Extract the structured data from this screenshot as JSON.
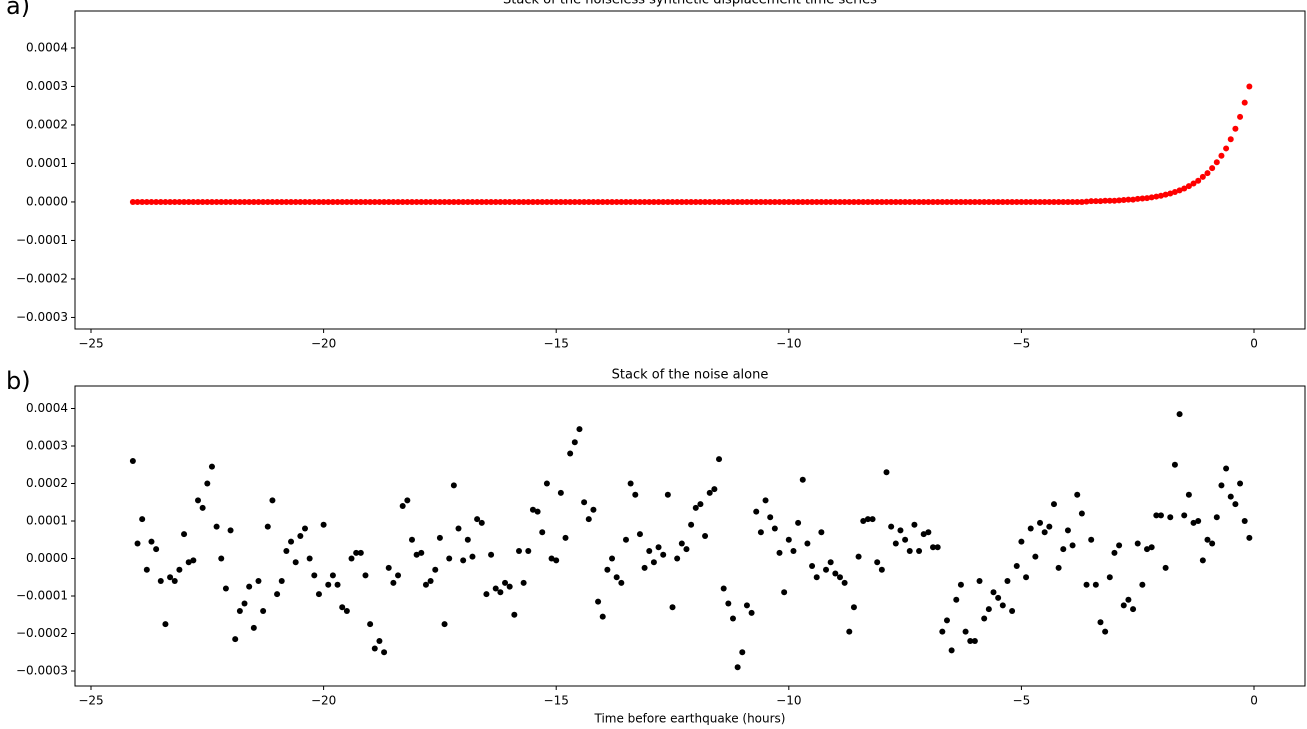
{
  "chart_data": [
    {
      "type": "scatter",
      "panel_label": "a)",
      "title": "Stack of the noiseless synthetic displacement time series",
      "color": "#ff0000",
      "x": [
        -24.1,
        -24,
        -23.9,
        -23.8,
        -23.7,
        -23.6,
        -23.5,
        -23.4,
        -23.3,
        -23.2,
        -23.1,
        -23,
        -22.9,
        -22.8,
        -22.7,
        -22.6,
        -22.5,
        -22.4,
        -22.3,
        -22.2,
        -22.1,
        -22,
        -21.9,
        -21.8,
        -21.7,
        -21.6,
        -21.5,
        -21.4,
        -21.3,
        -21.2,
        -21.1,
        -21,
        -20.9,
        -20.8,
        -20.7,
        -20.6,
        -20.5,
        -20.4,
        -20.3,
        -20.2,
        -20.1,
        -20,
        -19.9,
        -19.8,
        -19.7,
        -19.6,
        -19.5,
        -19.4,
        -19.3,
        -19.2,
        -19.1,
        -19,
        -18.9,
        -18.8,
        -18.7,
        -18.6,
        -18.5,
        -18.4,
        -18.3,
        -18.2,
        -18.1,
        -18,
        -17.9,
        -17.8,
        -17.7,
        -17.6,
        -17.5,
        -17.4,
        -17.3,
        -17.2,
        -17.1,
        -17,
        -16.9,
        -16.8,
        -16.7,
        -16.6,
        -16.5,
        -16.4,
        -16.3,
        -16.2,
        -16.1,
        -16,
        -15.9,
        -15.8,
        -15.7,
        -15.6,
        -15.5,
        -15.4,
        -15.3,
        -15.2,
        -15.1,
        -15,
        -14.9,
        -14.8,
        -14.7,
        -14.6,
        -14.5,
        -14.4,
        -14.3,
        -14.2,
        -14.1,
        -14,
        -13.9,
        -13.8,
        -13.7,
        -13.6,
        -13.5,
        -13.4,
        -13.3,
        -13.2,
        -13.1,
        -13,
        -12.9,
        -12.8,
        -12.7,
        -12.6,
        -12.5,
        -12.4,
        -12.3,
        -12.2,
        -12.1,
        -12,
        -11.9,
        -11.8,
        -11.7,
        -11.6,
        -11.5,
        -11.4,
        -11.3,
        -11.2,
        -11.1,
        -11,
        -10.9,
        -10.8,
        -10.7,
        -10.6,
        -10.5,
        -10.4,
        -10.3,
        -10.2,
        -10.1,
        -10,
        -9.9,
        -9.8,
        -9.7,
        -9.6,
        -9.5,
        -9.4,
        -9.3,
        -9.2,
        -9.1,
        -9,
        -8.9,
        -8.8,
        -8.7,
        -8.6,
        -8.5,
        -8.4,
        -8.3,
        -8.2,
        -8.1,
        -8,
        -7.9,
        -7.8,
        -7.7,
        -7.6,
        -7.5,
        -7.4,
        -7.3,
        -7.2,
        -7.1,
        -7,
        -6.9,
        -6.8,
        -6.7,
        -6.6,
        -6.5,
        -6.4,
        -6.3,
        -6.2,
        -6.1,
        -6,
        -5.9,
        -5.8,
        -5.7,
        -5.6,
        -5.5,
        -5.4,
        -5.3,
        -5.2,
        -5.1,
        -5,
        -4.9,
        -4.8,
        -4.7,
        -4.6,
        -4.5,
        -4.4,
        -4.3,
        -4.2,
        -4.1,
        -4,
        -3.9,
        -3.8,
        -3.7,
        -3.6,
        -3.5,
        -3.4,
        -3.3,
        -3.2,
        -3.1,
        -3,
        -2.9,
        -2.8,
        -2.7,
        -2.6,
        -2.5,
        -2.4,
        -2.3,
        -2.2,
        -2.1,
        -2,
        -1.9,
        -1.8,
        -1.7,
        -1.6,
        -1.5,
        -1.4,
        -1.3,
        -1.2,
        -1.1,
        -1,
        -0.9,
        -0.8,
        -0.7,
        -0.6,
        -0.5,
        -0.4,
        -0.3,
        -0.2,
        -0.1
      ],
      "values": [
        0,
        0,
        0,
        0,
        0,
        0,
        0,
        0,
        0,
        0,
        0,
        0,
        0,
        0,
        0,
        0,
        0,
        0,
        0,
        0,
        0,
        0,
        0,
        0,
        0,
        0,
        0,
        0,
        0,
        0,
        0,
        0,
        0,
        0,
        0,
        0,
        0,
        0,
        0,
        0,
        0,
        0,
        0,
        0,
        0,
        0,
        0,
        0,
        0,
        0,
        0,
        0,
        0,
        0,
        0,
        0,
        0,
        0,
        0,
        0,
        0,
        0,
        0,
        0,
        0,
        0,
        0,
        0,
        0,
        0,
        0,
        0,
        0,
        0,
        0,
        0,
        0,
        0,
        0,
        0,
        0,
        0,
        0,
        0,
        0,
        0,
        0,
        0,
        0,
        0,
        0,
        0,
        0,
        0,
        0,
        0,
        0,
        0,
        0,
        0,
        0,
        0,
        0,
        0,
        0,
        0,
        0,
        0,
        0,
        0,
        0,
        0,
        0,
        0,
        0,
        0,
        0,
        0,
        0,
        0,
        0,
        0,
        0,
        0,
        0,
        0,
        0,
        0,
        0,
        0,
        0,
        0,
        0,
        0,
        0,
        0,
        0,
        0,
        0,
        0,
        0,
        0,
        0,
        0,
        0,
        0,
        0,
        0,
        0,
        0,
        0,
        0,
        0,
        0,
        0,
        0,
        0,
        0,
        0,
        0,
        0,
        0,
        0,
        0,
        0,
        0,
        0,
        0,
        0,
        0,
        0,
        0,
        0,
        0,
        0,
        0,
        0,
        0,
        0,
        0,
        0,
        0,
        0,
        0,
        0,
        0,
        0,
        0,
        0,
        0,
        0,
        0,
        0,
        0,
        0,
        0,
        0,
        0,
        0,
        0,
        0,
        0,
        0,
        0,
        0,
        1e-06,
        2e-06,
        2e-06,
        2e-06,
        3e-06,
        3e-06,
        3e-06,
        4e-06,
        5e-06,
        6e-06,
        6e-06,
        8e-06,
        9e-06,
        1e-05,
        1.2e-05,
        1.4e-05,
        1.6e-05,
        1.9e-05,
        2.2e-05,
        2.6e-05,
        3e-05,
        3.5e-05,
        4.1e-05,
        4.8e-05,
        5.5e-05,
        6.5e-05,
        7.5e-05,
        8.8e-05,
        0.000103,
        0.00012,
        0.000139,
        0.000163,
        0.00019,
        0.000221,
        0.000258,
        0.0003
      ],
      "xlim": [
        -25.344,
        1.096
      ],
      "xticks": [
        {
          "value": -25,
          "label": "−25"
        },
        {
          "value": -20,
          "label": "−20"
        },
        {
          "value": -15,
          "label": "−15"
        },
        {
          "value": -10,
          "label": "−10"
        },
        {
          "value": -5,
          "label": "−5"
        },
        0
      ],
      "ylim": [
        -0.00033,
        0.000496
      ],
      "yticks": [
        {
          "value": -0.0003,
          "label": "−0.0003"
        },
        {
          "value": -0.0002,
          "label": "−0.0002"
        },
        {
          "value": -0.0001,
          "label": "−0.0001"
        },
        {
          "value": 0,
          "label": "0.0000"
        },
        0.0001,
        0.0002,
        0.0003,
        0.0004
      ]
    },
    {
      "type": "scatter",
      "panel_label": "b)",
      "title": "Stack of the noise alone",
      "xlabel": "Time before earthquake (hours)",
      "color": "#000000",
      "x": [
        -24.1,
        -24,
        -23.9,
        -23.8,
        -23.7,
        -23.6,
        -23.5,
        -23.4,
        -23.3,
        -23.2,
        -23.1,
        -23,
        -22.9,
        -22.8,
        -22.7,
        -22.6,
        -22.5,
        -22.4,
        -22.3,
        -22.2,
        -22.1,
        -22,
        -21.9,
        -21.8,
        -21.7,
        -21.6,
        -21.5,
        -21.4,
        -21.3,
        -21.2,
        -21.1,
        -21,
        -20.9,
        -20.8,
        -20.7,
        -20.6,
        -20.5,
        -20.4,
        -20.3,
        -20.2,
        -20.1,
        -20,
        -19.9,
        -19.8,
        -19.7,
        -19.6,
        -19.5,
        -19.4,
        -19.3,
        -19.2,
        -19.1,
        -19,
        -18.9,
        -18.8,
        -18.7,
        -18.6,
        -18.5,
        -18.4,
        -18.3,
        -18.2,
        -18.1,
        -18,
        -17.9,
        -17.8,
        -17.7,
        -17.6,
        -17.5,
        -17.4,
        -17.3,
        -17.2,
        -17.1,
        -17,
        -16.9,
        -16.8,
        -16.7,
        -16.6,
        -16.5,
        -16.4,
        -16.3,
        -16.2,
        -16.1,
        -16,
        -15.9,
        -15.8,
        -15.7,
        -15.6,
        -15.5,
        -15.4,
        -15.3,
        -15.2,
        -15.1,
        -15,
        -14.9,
        -14.8,
        -14.7,
        -14.6,
        -14.5,
        -14.4,
        -14.3,
        -14.2,
        -14.1,
        -14,
        -13.9,
        -13.8,
        -13.7,
        -13.6,
        -13.5,
        -13.4,
        -13.3,
        -13.2,
        -13.1,
        -13,
        -12.9,
        -12.8,
        -12.7,
        -12.6,
        -12.5,
        -12.4,
        -12.3,
        -12.2,
        -12.1,
        -12,
        -11.9,
        -11.8,
        -11.7,
        -11.6,
        -11.5,
        -11.4,
        -11.3,
        -11.2,
        -11.1,
        -11,
        -10.9,
        -10.8,
        -10.7,
        -10.6,
        -10.5,
        -10.4,
        -10.3,
        -10.2,
        -10.1,
        -10,
        -9.9,
        -9.8,
        -9.7,
        -9.6,
        -9.5,
        -9.4,
        -9.3,
        -9.2,
        -9.1,
        -9,
        -8.9,
        -8.8,
        -8.7,
        -8.6,
        -8.5,
        -8.4,
        -8.3,
        -8.2,
        -8.1,
        -8,
        -7.9,
        -7.8,
        -7.7,
        -7.6,
        -7.5,
        -7.4,
        -7.3,
        -7.2,
        -7.1,
        -7,
        -6.9,
        -6.8,
        -6.7,
        -6.6,
        -6.5,
        -6.4,
        -6.3,
        -6.2,
        -6.1,
        -6,
        -5.9,
        -5.8,
        -5.7,
        -5.6,
        -5.5,
        -5.4,
        -5.3,
        -5.2,
        -5.1,
        -5,
        -4.9,
        -4.8,
        -4.7,
        -4.6,
        -4.5,
        -4.4,
        -4.3,
        -4.2,
        -4.1,
        -4,
        -3.9,
        -3.8,
        -3.7,
        -3.6,
        -3.5,
        -3.4,
        -3.3,
        -3.2,
        -3.1,
        -3,
        -2.9,
        -2.8,
        -2.7,
        -2.6,
        -2.5,
        -2.4,
        -2.3,
        -2.2,
        -2.1,
        -2,
        -1.9,
        -1.8,
        -1.7,
        -1.6,
        -1.5,
        -1.4,
        -1.3,
        -1.2,
        -1.1,
        -1,
        -0.9,
        -0.8,
        -0.7,
        -0.6,
        -0.5,
        -0.4,
        -0.3,
        -0.2,
        -0.1
      ],
      "values": [
        0.00026,
        4e-05,
        0.000105,
        -3e-05,
        4.5e-05,
        2.5e-05,
        -6e-05,
        -0.000175,
        -5e-05,
        -6e-05,
        -3e-05,
        6.5e-05,
        -1e-05,
        -5e-06,
        0.000155,
        0.000135,
        0.0002,
        0.000245,
        8.5e-05,
        0,
        -8e-05,
        7.5e-05,
        -0.000215,
        -0.00014,
        -0.00012,
        -7.5e-05,
        -0.000185,
        -6e-05,
        -0.00014,
        8.5e-05,
        0.000155,
        -9.5e-05,
        -6e-05,
        2e-05,
        4.5e-05,
        -1e-05,
        6e-05,
        8e-05,
        0,
        -4.5e-05,
        -9.5e-05,
        9e-05,
        -7e-05,
        -4.5e-05,
        -7e-05,
        -0.00013,
        -0.00014,
        0,
        1.5e-05,
        1.5e-05,
        -4.5e-05,
        -0.000175,
        -0.00024,
        -0.00022,
        -0.00025,
        -2.5e-05,
        -6.5e-05,
        -4.5e-05,
        0.00014,
        0.000155,
        5e-05,
        1e-05,
        1.5e-05,
        -7e-05,
        -6e-05,
        -3e-05,
        5.5e-05,
        -0.000175,
        0,
        0.000195,
        8e-05,
        -5e-06,
        5e-05,
        5e-06,
        0.000105,
        9.5e-05,
        -9.5e-05,
        1e-05,
        -8e-05,
        -9e-05,
        -6.5e-05,
        -7.5e-05,
        -0.00015,
        2e-05,
        -6.5e-05,
        2e-05,
        0.00013,
        0.000125,
        7e-05,
        0.0002,
        0,
        -5e-06,
        0.000175,
        5.5e-05,
        0.00028,
        0.00031,
        0.000345,
        0.00015,
        0.000105,
        0.00013,
        -0.000115,
        -0.000155,
        -3e-05,
        0,
        -5e-05,
        -6.5e-05,
        5e-05,
        0.0002,
        0.00017,
        6.5e-05,
        -2.5e-05,
        2e-05,
        -1e-05,
        3e-05,
        1e-05,
        0.00017,
        -0.00013,
        0,
        4e-05,
        2.5e-05,
        9e-05,
        0.000135,
        0.000145,
        6e-05,
        0.000175,
        0.000185,
        0.000265,
        -8e-05,
        -0.00012,
        -0.00016,
        -0.00029,
        -0.00025,
        -0.000125,
        -0.000145,
        0.000125,
        7e-05,
        0.000155,
        0.00011,
        8e-05,
        1.5e-05,
        -9e-05,
        5e-05,
        2e-05,
        9.5e-05,
        0.00021,
        4e-05,
        -2e-05,
        -5e-05,
        7e-05,
        -3e-05,
        -1e-05,
        -4e-05,
        -5e-05,
        -6.5e-05,
        -0.000195,
        -0.00013,
        5e-06,
        0.0001,
        0.000105,
        0.000105,
        -1e-05,
        -3e-05,
        0.00023,
        8.5e-05,
        4e-05,
        7.5e-05,
        5e-05,
        2e-05,
        9e-05,
        2e-05,
        6.5e-05,
        7e-05,
        3e-05,
        3e-05,
        -0.000195,
        -0.000165,
        -0.000245,
        -0.00011,
        -7e-05,
        -0.000195,
        -0.00022,
        -0.00022,
        -6e-05,
        -0.00016,
        -0.000135,
        -9e-05,
        -0.000105,
        -0.000125,
        -6e-05,
        -0.00014,
        -2e-05,
        4.5e-05,
        -5e-05,
        8e-05,
        5e-06,
        9.5e-05,
        7e-05,
        8.5e-05,
        0.000145,
        -2.5e-05,
        2.5e-05,
        7.5e-05,
        3.5e-05,
        0.00017,
        0.00012,
        -7e-05,
        5e-05,
        -7e-05,
        -0.00017,
        -0.000195,
        -5e-05,
        1.5e-05,
        3.5e-05,
        -0.000125,
        -0.00011,
        -0.000135,
        4e-05,
        -7e-05,
        2.5e-05,
        3e-05,
        0.000115,
        0.000115,
        -2.5e-05,
        0.00011,
        0.00025,
        0.000385,
        0.000115,
        0.00017,
        9.5e-05,
        0.0001,
        -5e-06,
        5e-05,
        4e-05,
        0.00011,
        0.000195,
        0.00024,
        0.000165,
        0.000145,
        0.0002,
        0.0001,
        5.5e-05
      ],
      "xlim": [
        -25.344,
        1.096
      ],
      "xticks": [
        {
          "value": -25,
          "label": "−25"
        },
        {
          "value": -20,
          "label": "−20"
        },
        {
          "value": -15,
          "label": "−15"
        },
        {
          "value": -10,
          "label": "−10"
        },
        {
          "value": -5,
          "label": "−5"
        },
        0
      ],
      "ylim": [
        -0.00034,
        0.00046
      ],
      "yticks": [
        {
          "value": -0.0003,
          "label": "−0.0003"
        },
        {
          "value": -0.0002,
          "label": "−0.0002"
        },
        {
          "value": -0.0001,
          "label": "−0.0001"
        },
        {
          "value": 0,
          "label": "0.0000"
        },
        0.0001,
        0.0002,
        0.0003,
        0.0004
      ]
    }
  ]
}
